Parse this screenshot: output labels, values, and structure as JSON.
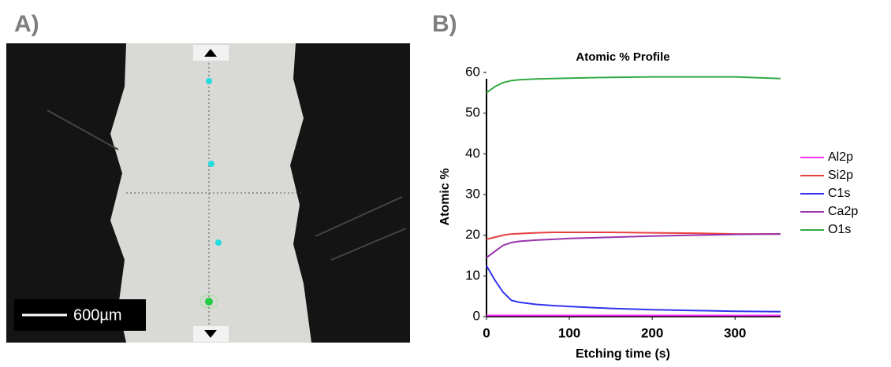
{
  "panels": {
    "a_label": "A)",
    "b_label": "B)"
  },
  "image": {
    "scale_bar": "600µm"
  },
  "chart_data": {
    "type": "line",
    "title": "Atomic % Profile",
    "x_label": "Etching time (s)",
    "y_label": "Atomic %",
    "x": [
      0,
      10,
      20,
      30,
      40,
      60,
      80,
      100,
      150,
      200,
      250,
      300,
      355
    ],
    "series": [
      {
        "name": "Al2p",
        "color": "#ff33ff",
        "values": [
          0.3,
          0.3,
          0.3,
          0.3,
          0.3,
          0.3,
          0.3,
          0.3,
          0.3,
          0.3,
          0.3,
          0.3,
          0.3
        ]
      },
      {
        "name": "Si2p",
        "color": "#e84040",
        "values": [
          19,
          19.5,
          20,
          20.3,
          20.4,
          20.6,
          20.7,
          20.7,
          20.7,
          20.6,
          20.5,
          20.3,
          20.3
        ]
      },
      {
        "name": "C1s",
        "color": "#3333ee",
        "values": [
          12.5,
          9,
          6,
          4,
          3.5,
          3,
          2.7,
          2.5,
          2,
          1.7,
          1.5,
          1.3,
          1.2
        ]
      },
      {
        "name": "Ca2p",
        "color": "#9933aa",
        "values": [
          14.5,
          16,
          17.5,
          18.2,
          18.5,
          18.8,
          19,
          19.2,
          19.5,
          19.8,
          20,
          20.2,
          20.3
        ]
      },
      {
        "name": "O1s",
        "color": "#33aa44",
        "values": [
          55,
          56.5,
          57.5,
          58,
          58.2,
          58.4,
          58.5,
          58.6,
          58.8,
          58.9,
          58.9,
          58.9,
          58.5
        ]
      }
    ],
    "xlim": [
      0,
      355
    ],
    "xticks": [
      0,
      100,
      200,
      300
    ],
    "ylim": [
      0,
      60
    ],
    "yticks": [
      0,
      10,
      20,
      30,
      40,
      50,
      60
    ],
    "legend": "right"
  }
}
